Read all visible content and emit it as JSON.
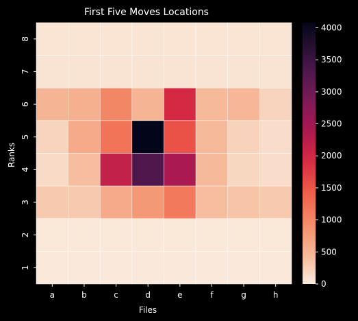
{
  "chart_data": {
    "type": "heatmap",
    "title": "First Five Moves Locations",
    "xlabel": "Files",
    "ylabel": "Ranks",
    "x_categories": [
      "a",
      "b",
      "c",
      "d",
      "e",
      "f",
      "g",
      "h"
    ],
    "y_categories": [
      "8",
      "7",
      "6",
      "5",
      "4",
      "3",
      "2",
      "1"
    ],
    "values": [
      [
        50,
        50,
        50,
        50,
        50,
        50,
        50,
        50
      ],
      [
        60,
        60,
        60,
        60,
        60,
        60,
        60,
        60
      ],
      [
        500,
        550,
        1000,
        500,
        1950,
        450,
        480,
        200
      ],
      [
        200,
        600,
        1200,
        4080,
        1550,
        450,
        220,
        120
      ],
      [
        150,
        400,
        2150,
        3300,
        2400,
        450,
        180,
        130
      ],
      [
        300,
        300,
        600,
        800,
        1150,
        400,
        350,
        300
      ],
      [
        30,
        30,
        30,
        30,
        30,
        30,
        30,
        30
      ],
      [
        20,
        20,
        20,
        20,
        20,
        20,
        20,
        20
      ]
    ],
    "colorbar": {
      "min": 0,
      "max": 4080,
      "ticks": [
        0,
        500,
        1000,
        1500,
        2000,
        2500,
        3000,
        3500,
        4000
      ],
      "colormap": "rocket_r"
    },
    "grid_line_color": "#ffffff",
    "background_color": "#000000"
  }
}
